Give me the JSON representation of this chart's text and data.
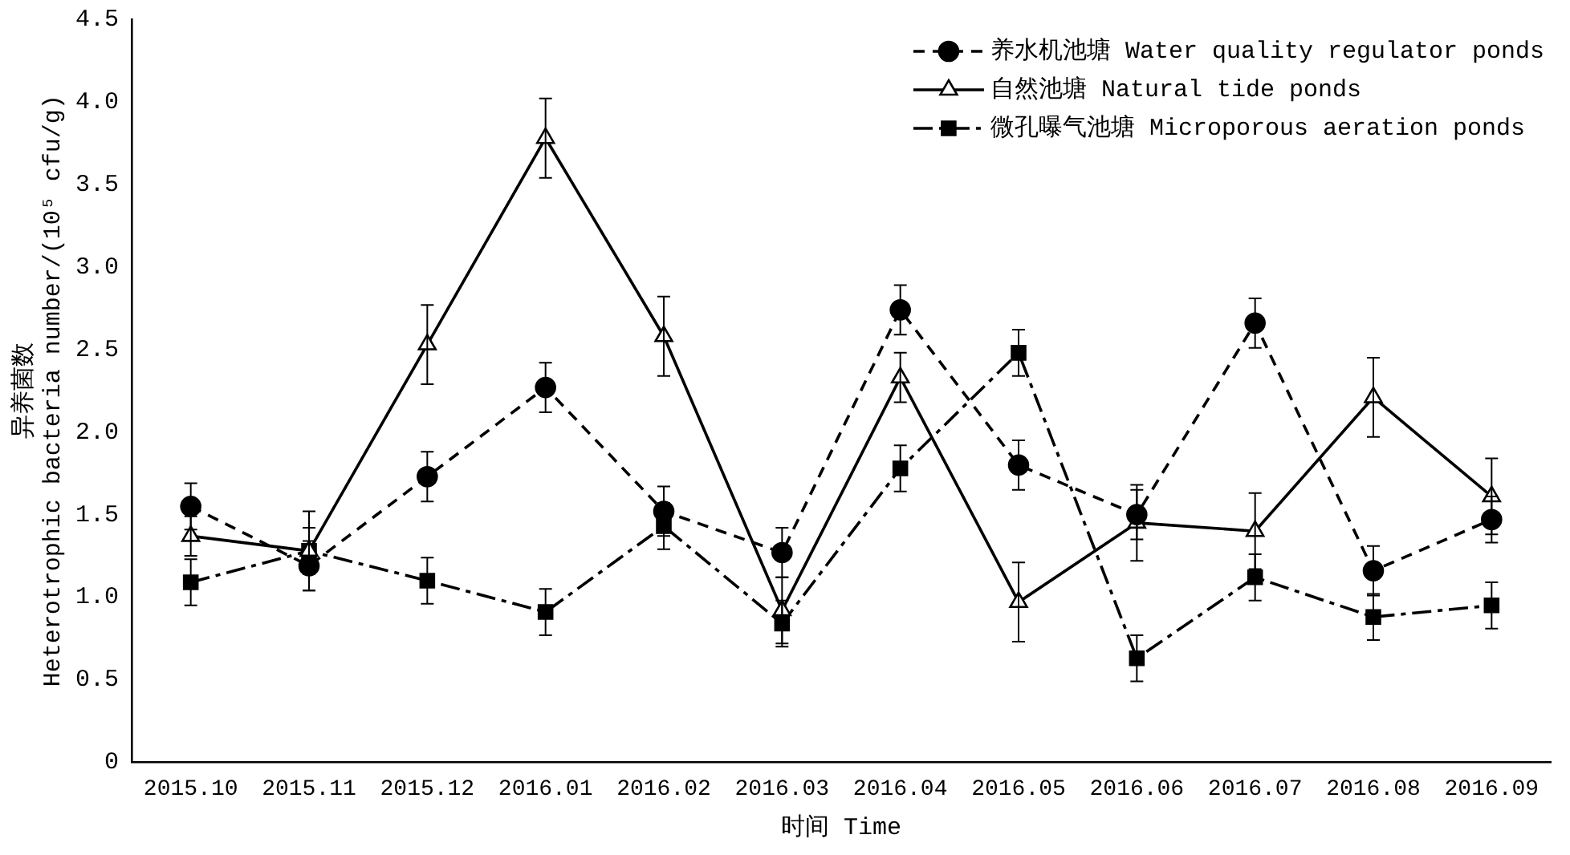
{
  "chart_data": {
    "type": "line",
    "xlabel": "时间 Time",
    "ylabel": "异养菌数\nHeterotrophic bacteria number/(10⁵ cfu/g)",
    "categories": [
      "2015.10",
      "2015.11",
      "2015.12",
      "2016.01",
      "2016.02",
      "2016.03",
      "2016.04",
      "2016.05",
      "2016.06",
      "2016.07",
      "2016.08",
      "2016.09"
    ],
    "ylim": [
      0,
      4.5
    ],
    "yticks": [
      0,
      {
        "value": 0.5,
        "label": "0.5"
      },
      {
        "value": 1,
        "label": "1.0"
      },
      {
        "value": 1.5,
        "label": "1.5"
      },
      {
        "value": 2,
        "label": "2.0"
      },
      {
        "value": 2.5,
        "label": "2.5"
      },
      {
        "value": 3,
        "label": "3.0"
      },
      {
        "value": 3.5,
        "label": "3.5"
      },
      {
        "value": 4,
        "label": "4.0"
      },
      {
        "value": 4.5,
        "label": "4.5"
      }
    ],
    "grid": false,
    "legend": "top right",
    "series": [
      {
        "name": "养水机池塘 Water quality regulator ponds",
        "color": "#000000",
        "marker": "circle",
        "line_style": "dashed",
        "values": [
          1.55,
          1.19,
          1.73,
          2.27,
          1.52,
          1.27,
          2.74,
          1.8,
          1.5,
          2.66,
          1.16,
          1.47
        ],
        "errors": [
          0.14,
          0.15,
          0.15,
          0.15,
          0.15,
          0.15,
          0.15,
          0.15,
          0.15,
          0.15,
          0.15,
          0.14
        ]
      },
      {
        "name": "自然池塘 Natural tide ponds",
        "color": "#000000",
        "marker": "triangle",
        "line_style": "solid",
        "values": [
          1.37,
          1.28,
          2.53,
          3.78,
          2.58,
          0.92,
          2.33,
          0.97,
          1.45,
          1.4,
          2.21,
          1.61
        ],
        "errors": [
          0.12,
          0.24,
          0.24,
          0.24,
          0.24,
          0.2,
          0.15,
          0.24,
          0.23,
          0.23,
          0.24,
          0.23
        ]
      },
      {
        "name": "微孔曝气池塘 Microporous aeration ponds",
        "color": "#000000",
        "marker": "square",
        "line_style": "dashdot",
        "values": [
          1.09,
          1.28,
          1.1,
          0.91,
          1.43,
          0.84,
          1.78,
          2.48,
          0.63,
          1.12,
          0.88,
          0.95
        ],
        "errors": [
          0.14,
          0.14,
          0.14,
          0.14,
          0.14,
          0.14,
          0.14,
          0.14,
          0.14,
          0.14,
          0.14,
          0.14
        ]
      }
    ]
  }
}
